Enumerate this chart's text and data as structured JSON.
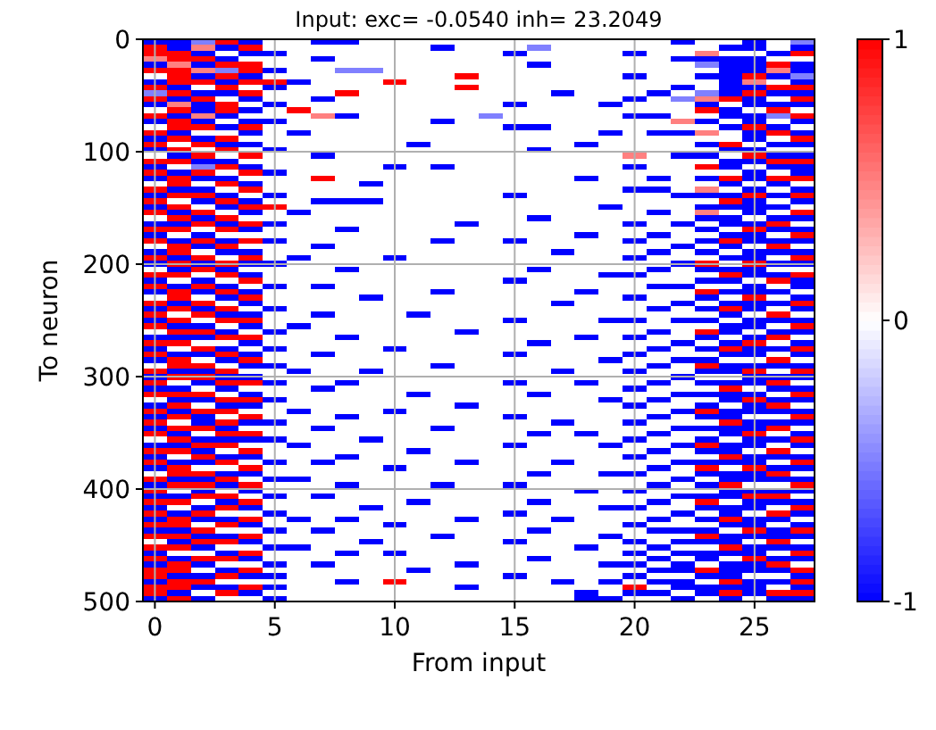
{
  "chart_data": {
    "type": "heatmap",
    "title": "Input: exc= -0.0540 inh= 23.2049",
    "xlabel": "From input",
    "ylabel": "To neuron",
    "x": [
      0,
      1,
      2,
      3,
      4,
      5,
      6,
      7,
      8,
      9,
      10,
      11,
      12,
      13,
      14,
      15,
      16,
      17,
      18,
      19,
      20,
      21,
      22,
      23,
      24,
      25,
      26,
      27
    ],
    "xlim": [
      -0.5,
      27.5
    ],
    "xticks": [
      0,
      5,
      10,
      15,
      20,
      25
    ],
    "ylim": [
      500,
      0
    ],
    "yticks": [
      0,
      100,
      200,
      300,
      400,
      500
    ],
    "grid": true,
    "clim": [
      -1,
      1
    ],
    "cticks": [
      -1,
      0,
      1
    ],
    "cells": [
      [
        -1,
        -1,
        -0.5,
        1,
        -1,
        0,
        0,
        -1,
        -1,
        0,
        0,
        0,
        0,
        0,
        0,
        0,
        0,
        0,
        0,
        0,
        0,
        0,
        -1,
        0,
        0,
        -1,
        0,
        -0.5
      ],
      [
        1,
        -1,
        0.5,
        -1,
        1,
        0,
        0,
        0,
        0,
        0,
        0,
        0,
        -1,
        0,
        0,
        0,
        -0.5,
        0,
        0,
        0,
        0,
        0,
        0,
        0,
        -1,
        -1,
        0,
        -1
      ],
      [
        1,
        1,
        -1,
        0,
        -1,
        -1,
        0,
        0,
        0,
        0,
        0,
        0,
        0,
        0,
        0,
        -1,
        0,
        0,
        0,
        0,
        -1,
        0,
        0,
        0.5,
        0,
        0,
        -1,
        1
      ],
      [
        0.5,
        1,
        1,
        -1,
        0,
        0,
        0,
        -1,
        0,
        0,
        0,
        0,
        0,
        0,
        0,
        0,
        0,
        0,
        0,
        0,
        0,
        0,
        -1,
        -1,
        -1,
        -1,
        0,
        0
      ],
      [
        -1,
        0.5,
        -1,
        1,
        1,
        0,
        0,
        0,
        0,
        0,
        0,
        0,
        0,
        0,
        0,
        0,
        -1,
        0,
        0,
        0,
        0,
        0,
        0,
        -0.5,
        -1,
        -1,
        1,
        -1
      ],
      [
        1,
        1,
        0.5,
        -0.5,
        1,
        -1,
        0,
        0,
        -0.5,
        -0.5,
        0,
        0,
        0,
        0,
        0,
        0,
        0,
        0,
        0,
        0,
        0,
        0,
        0,
        0,
        -1,
        -1,
        0.5,
        -1
      ],
      [
        0,
        1,
        -1,
        1,
        -1,
        0,
        0,
        0,
        0,
        0,
        0,
        0,
        0,
        1,
        0,
        0,
        0,
        0,
        0,
        0,
        -1,
        0,
        0,
        -1,
        -1,
        1,
        -1,
        -0.5
      ],
      [
        -1,
        1,
        1,
        -1,
        1,
        1,
        -1,
        0,
        0,
        0,
        1,
        0,
        0,
        0,
        0,
        0,
        0,
        0,
        0,
        0,
        0,
        0,
        0,
        0,
        -1,
        0.5,
        0,
        -1
      ],
      [
        1,
        -1,
        0,
        1,
        0,
        -1,
        0,
        0,
        0,
        0,
        0,
        0,
        0,
        1,
        0,
        0,
        0,
        0,
        0,
        0,
        0,
        0,
        -1,
        0,
        -1,
        -1,
        1,
        1
      ],
      [
        -0.5,
        1,
        -1,
        -1,
        1,
        0,
        0,
        0,
        1,
        0,
        0,
        0,
        0,
        0,
        0,
        0,
        0,
        -1,
        0,
        0,
        0,
        -1,
        0,
        -0.5,
        -1,
        1,
        -1,
        -1
      ],
      [
        1,
        -1,
        1,
        0,
        -1,
        0,
        0,
        -1,
        0,
        0,
        0,
        0,
        0,
        0,
        0,
        0,
        0,
        0,
        0,
        0,
        -1,
        0,
        -0.5,
        0.5,
        1,
        -1,
        0,
        1
      ],
      [
        -1,
        0.5,
        -1,
        1,
        0,
        -1,
        0,
        0,
        0,
        0,
        0,
        0,
        0,
        0,
        0,
        -1,
        0,
        0,
        0,
        -1,
        0,
        0,
        0,
        -1,
        0,
        -1,
        -1,
        -1
      ],
      [
        0,
        1,
        -1,
        1,
        -1,
        0,
        1,
        0,
        0,
        0,
        0,
        0,
        0,
        0,
        0,
        0,
        0,
        0,
        0,
        0,
        0,
        0,
        0,
        1,
        -1,
        0,
        1,
        0
      ],
      [
        1,
        -1,
        0.5,
        -1,
        0,
        0,
        0,
        0.5,
        -1,
        0,
        0,
        0,
        0,
        0,
        -0.5,
        0,
        0,
        0,
        0,
        0,
        -1,
        -1,
        0,
        0,
        -1,
        -1,
        -0.5,
        1
      ],
      [
        -1,
        1,
        -1,
        0,
        -1,
        -1,
        0,
        0,
        0,
        0,
        0,
        0,
        -1,
        0,
        0,
        0,
        0,
        0,
        0,
        0,
        0,
        0,
        0.5,
        -1,
        0,
        -1,
        0,
        -1
      ],
      [
        0,
        1,
        1,
        -1,
        1,
        0,
        0,
        0,
        0,
        0,
        0,
        0,
        0,
        0,
        0,
        -1,
        -1,
        0,
        0,
        0,
        0,
        0,
        0,
        0,
        -1,
        1,
        -1,
        0
      ],
      [
        1,
        -1,
        0,
        0,
        -1,
        0,
        -1,
        0,
        0,
        0,
        0,
        0,
        0,
        0,
        0,
        0,
        0,
        0,
        0,
        -1,
        0,
        -1,
        -1,
        0.5,
        0,
        -1,
        1,
        -1
      ],
      [
        -1,
        1,
        -1,
        1,
        0,
        0,
        0,
        0,
        0,
        0,
        0,
        0,
        0,
        0,
        0,
        0,
        0,
        0,
        0,
        0,
        0,
        0,
        0,
        0,
        0,
        -1,
        0,
        1
      ],
      [
        1,
        0,
        1,
        -1,
        -1,
        0,
        0,
        0,
        0,
        0,
        0,
        -1,
        0,
        0,
        0,
        0,
        0,
        0,
        -1,
        0,
        0,
        0,
        0,
        -1,
        1,
        0,
        -1,
        -1
      ],
      [
        -1,
        1,
        0,
        1,
        0,
        -1,
        0,
        0,
        0,
        0,
        0,
        0,
        0,
        0,
        0,
        0,
        -1,
        0,
        0,
        0,
        0,
        0,
        0,
        0,
        -1,
        -1,
        0,
        0
      ],
      [
        0,
        -1,
        1,
        0,
        1,
        0,
        0,
        -1,
        0,
        0,
        0,
        0,
        0,
        0,
        0,
        0,
        0,
        0,
        0,
        0,
        0.5,
        0,
        -1,
        -1,
        0,
        1,
        -1,
        -1
      ],
      [
        1,
        1,
        -1,
        -1,
        0,
        0,
        0,
        0,
        0,
        0,
        0,
        0,
        0,
        0,
        0,
        0,
        0,
        0,
        0,
        0,
        0,
        0,
        0,
        0,
        -1,
        -1,
        1,
        1
      ],
      [
        -1,
        0,
        -0.5,
        1,
        -1,
        0,
        0,
        0,
        0,
        0,
        -1,
        0,
        -1,
        0,
        0,
        0,
        0,
        0,
        0,
        0,
        -1,
        0,
        0,
        1,
        -1,
        0,
        -1,
        -1
      ],
      [
        1,
        -1,
        1,
        0,
        1,
        -1,
        0,
        0,
        0,
        0,
        0,
        0,
        0,
        0,
        0,
        0,
        0,
        0,
        0,
        0,
        0,
        0,
        0,
        0,
        0,
        -1,
        0,
        -1
      ],
      [
        -1,
        1,
        -1,
        -1,
        0,
        0,
        0,
        1,
        0,
        0,
        0,
        0,
        0,
        0,
        0,
        0,
        0,
        0,
        -1,
        0,
        0,
        -1,
        0,
        -1,
        1,
        -1,
        1,
        1
      ],
      [
        0,
        1,
        0,
        1,
        -1,
        0,
        0,
        0,
        0,
        -1,
        0,
        0,
        0,
        0,
        0,
        0,
        0,
        0,
        0,
        0,
        0,
        0,
        0,
        0,
        -1,
        0,
        -1,
        0
      ],
      [
        1,
        -1,
        -1,
        0,
        1,
        0,
        0,
        0,
        0,
        0,
        0,
        0,
        0,
        0,
        0,
        0,
        0,
        0,
        0,
        0,
        -1,
        -1,
        0,
        0.5,
        0,
        -1,
        0,
        -1
      ],
      [
        -1,
        1,
        1,
        -1,
        0,
        -1,
        0,
        0,
        0,
        0,
        0,
        0,
        0,
        0,
        0,
        -1,
        0,
        0,
        0,
        0,
        0,
        0,
        -1,
        -1,
        -1,
        1,
        -1,
        1
      ],
      [
        1,
        0,
        -1,
        1,
        -1,
        0,
        0,
        -1,
        -1,
        -1,
        0,
        0,
        0,
        0,
        0,
        0,
        0,
        0,
        0,
        0,
        0,
        0,
        0,
        0,
        1,
        -1,
        0,
        -1
      ],
      [
        -1,
        1,
        0,
        -1,
        1,
        1,
        0,
        0,
        0,
        0,
        0,
        0,
        0,
        0,
        0,
        0,
        0,
        0,
        0,
        -1,
        0,
        0,
        0,
        -1,
        -1,
        -1,
        -1,
        0
      ],
      [
        1,
        -1,
        1,
        0,
        -1,
        0,
        -1,
        0,
        0,
        0,
        0,
        0,
        0,
        0,
        0,
        0,
        0,
        0,
        0,
        0,
        0,
        -1,
        0,
        0.5,
        0,
        -1,
        0,
        1
      ],
      [
        0,
        1,
        -1,
        1,
        0,
        0,
        0,
        0,
        0,
        0,
        0,
        0,
        0,
        0,
        0,
        0,
        -1,
        0,
        0,
        0,
        0,
        0,
        0,
        -1,
        -1,
        0,
        -1,
        -1
      ],
      [
        -1,
        -1,
        1,
        -1,
        1,
        -1,
        0,
        0,
        0,
        0,
        0,
        0,
        0,
        -1,
        0,
        0,
        0,
        0,
        0,
        0,
        -1,
        0,
        -1,
        0,
        -1,
        -1,
        1,
        0
      ],
      [
        1,
        1,
        0,
        1,
        -1,
        0,
        0,
        0,
        -1,
        0,
        0,
        0,
        0,
        0,
        0,
        0,
        0,
        0,
        0,
        0,
        0,
        0,
        0,
        -1,
        0,
        1,
        -1,
        -1
      ],
      [
        -1,
        0,
        -1,
        0,
        0,
        0,
        0,
        0,
        0,
        0,
        0,
        0,
        0,
        0,
        0,
        0,
        0,
        0,
        -1,
        0,
        0,
        -1,
        0,
        0,
        -1,
        -1,
        0,
        1
      ],
      [
        1,
        -1,
        1,
        -1,
        1,
        -1,
        0,
        0,
        0,
        0,
        0,
        0,
        -1,
        0,
        0,
        -1,
        0,
        0,
        0,
        0,
        -1,
        0,
        0,
        -1,
        1,
        -1,
        -1,
        -1
      ],
      [
        0,
        1,
        -1,
        1,
        0,
        0,
        0,
        -1,
        0,
        0,
        0,
        0,
        0,
        0,
        0,
        0,
        0,
        0,
        0,
        0,
        0,
        0,
        -1,
        0,
        -1,
        0,
        1,
        0
      ],
      [
        -1,
        1,
        0,
        -1,
        -1,
        0,
        0,
        0,
        0,
        0,
        0,
        0,
        0,
        0,
        0,
        0,
        0,
        -1,
        0,
        0,
        0,
        -1,
        0,
        -1,
        0,
        -1,
        -1,
        -1
      ],
      [
        1,
        -1,
        1,
        0,
        1,
        0,
        -1,
        0,
        0,
        0,
        -1,
        0,
        0,
        0,
        0,
        0,
        0,
        0,
        0,
        0,
        -1,
        0,
        0,
        0,
        -1,
        -1,
        0,
        1
      ],
      [
        -1,
        1,
        -1,
        1,
        -1,
        -1,
        0,
        0,
        0,
        0,
        0,
        0,
        0,
        0,
        0,
        0,
        0,
        0,
        0,
        0,
        0,
        0,
        -1,
        1,
        0,
        1,
        -1,
        -1
      ],
      [
        0,
        -1,
        1,
        -1,
        0,
        0,
        0,
        0,
        -1,
        0,
        0,
        0,
        0,
        0,
        0,
        0,
        -1,
        0,
        0,
        0,
        0,
        -1,
        0,
        -1,
        -1,
        -1,
        0,
        0
      ],
      [
        1,
        1,
        0,
        1,
        -1,
        0,
        0,
        0,
        0,
        0,
        0,
        0,
        0,
        0,
        0,
        0,
        0,
        0,
        0,
        -1,
        -1,
        0,
        0,
        0,
        1,
        -1,
        -1,
        1
      ],
      [
        -1,
        0,
        -1,
        0,
        1,
        0,
        0,
        0,
        0,
        0,
        0,
        0,
        0,
        0,
        0,
        -1,
        0,
        0,
        0,
        0,
        0,
        0,
        0,
        -1,
        -1,
        0,
        1,
        -1
      ],
      [
        1,
        -1,
        1,
        -1,
        0,
        -1,
        0,
        -1,
        0,
        0,
        0,
        0,
        0,
        0,
        0,
        0,
        0,
        0,
        0,
        0,
        0,
        -1,
        -1,
        0,
        0,
        -1,
        0,
        -1
      ],
      [
        -1,
        1,
        -1,
        1,
        -1,
        0,
        0,
        0,
        0,
        0,
        0,
        0,
        -1,
        0,
        0,
        0,
        0,
        0,
        -1,
        0,
        0,
        0,
        0,
        1,
        -1,
        -1,
        -1,
        0
      ],
      [
        0,
        1,
        0,
        -1,
        1,
        0,
        0,
        0,
        0,
        -1,
        0,
        0,
        0,
        0,
        0,
        0,
        0,
        0,
        0,
        0,
        -1,
        0,
        0,
        -1,
        0,
        1,
        0,
        -1
      ],
      [
        1,
        -1,
        1,
        0,
        -1,
        0,
        0,
        0,
        0,
        0,
        0,
        0,
        0,
        0,
        0,
        0,
        0,
        -1,
        0,
        0,
        0,
        0,
        -1,
        0,
        -1,
        -1,
        -1,
        1
      ],
      [
        -1,
        1,
        -1,
        1,
        0,
        -1,
        0,
        0,
        0,
        0,
        0,
        0,
        0,
        0,
        0,
        0,
        0,
        0,
        0,
        0,
        0,
        -1,
        0,
        -1,
        1,
        -1,
        0,
        -1
      ],
      [
        1,
        0,
        1,
        -1,
        -1,
        0,
        0,
        -1,
        0,
        0,
        0,
        -1,
        0,
        0,
        0,
        0,
        0,
        0,
        0,
        0,
        0,
        0,
        0,
        0,
        -1,
        0,
        1,
        0
      ],
      [
        -1,
        1,
        0,
        1,
        1,
        0,
        0,
        0,
        0,
        0,
        0,
        0,
        0,
        0,
        0,
        -1,
        0,
        0,
        0,
        -1,
        -1,
        0,
        -1,
        -1,
        0,
        -1,
        -1,
        -1
      ],
      [
        1,
        -1,
        -1,
        0,
        -1,
        0,
        -1,
        0,
        0,
        0,
        0,
        0,
        0,
        0,
        0,
        0,
        0,
        0,
        0,
        0,
        0,
        0,
        0,
        0,
        -1,
        -1,
        0,
        1
      ],
      [
        0,
        1,
        1,
        -1,
        0,
        -1,
        0,
        0,
        0,
        0,
        0,
        0,
        0,
        -1,
        0,
        0,
        0,
        0,
        0,
        0,
        0,
        -1,
        0,
        1,
        -1,
        0,
        -1,
        -1
      ],
      [
        -1,
        -1,
        -1,
        1,
        1,
        0,
        0,
        0,
        -1,
        0,
        0,
        0,
        0,
        0,
        0,
        0,
        0,
        0,
        -1,
        0,
        -1,
        0,
        0,
        -1,
        0,
        -1,
        1,
        0
      ],
      [
        1,
        1,
        0,
        0,
        -1,
        0,
        0,
        0,
        0,
        0,
        0,
        0,
        0,
        0,
        0,
        0,
        -1,
        0,
        0,
        0,
        0,
        0,
        -1,
        0,
        -1,
        1,
        0,
        -1
      ],
      [
        -1,
        0,
        1,
        -1,
        0,
        -1,
        0,
        0,
        0,
        0,
        -1,
        0,
        0,
        0,
        0,
        0,
        0,
        0,
        0,
        0,
        0,
        -1,
        0,
        -1,
        1,
        -1,
        -1,
        1
      ],
      [
        1,
        -1,
        -1,
        1,
        -1,
        0,
        0,
        -1,
        0,
        0,
        0,
        0,
        0,
        0,
        0,
        -1,
        0,
        0,
        0,
        0,
        -1,
        0,
        0,
        0,
        -1,
        -1,
        0,
        -1
      ],
      [
        -1,
        1,
        0,
        -1,
        1,
        0,
        0,
        0,
        0,
        0,
        0,
        0,
        0,
        0,
        0,
        0,
        0,
        0,
        0,
        -1,
        0,
        0,
        -1,
        -1,
        0,
        0,
        1,
        0
      ],
      [
        0,
        1,
        1,
        0,
        -1,
        -1,
        0,
        0,
        0,
        0,
        0,
        0,
        -1,
        0,
        0,
        0,
        0,
        0,
        0,
        0,
        0,
        -1,
        0,
        1,
        -1,
        -1,
        -1,
        -1
      ],
      [
        1,
        -1,
        -1,
        1,
        0,
        0,
        -1,
        0,
        0,
        -1,
        0,
        0,
        0,
        0,
        0,
        0,
        0,
        -1,
        0,
        0,
        -1,
        0,
        0,
        -1,
        -1,
        1,
        0,
        1
      ],
      [
        -1,
        1,
        1,
        -1,
        -1,
        0,
        0,
        0,
        0,
        0,
        0,
        0,
        0,
        0,
        0,
        0,
        0,
        0,
        0,
        0,
        0,
        0,
        -1,
        0,
        0,
        -1,
        -1,
        -1
      ],
      [
        1,
        0,
        -1,
        1,
        1,
        -1,
        0,
        0,
        -1,
        0,
        0,
        0,
        0,
        0,
        0,
        -1,
        0,
        0,
        -1,
        0,
        0,
        -1,
        0,
        -1,
        -1,
        -1,
        1,
        0
      ],
      [
        -1,
        -1,
        0,
        -1,
        0,
        0,
        0,
        -1,
        0,
        0,
        0,
        0,
        0,
        0,
        0,
        0,
        0,
        0,
        0,
        0,
        -1,
        0,
        0,
        0,
        1,
        0,
        -1,
        -1
      ],
      [
        1,
        1,
        1,
        0,
        -1,
        0,
        0,
        0,
        0,
        0,
        0,
        -1,
        0,
        0,
        0,
        0,
        -1,
        0,
        0,
        0,
        0,
        0,
        -1,
        -1,
        -1,
        -1,
        0,
        1
      ],
      [
        0,
        -1,
        -1,
        1,
        1,
        -1,
        0,
        0,
        0,
        0,
        0,
        0,
        0,
        0,
        0,
        0,
        0,
        0,
        0,
        -1,
        0,
        -1,
        0,
        0,
        -1,
        1,
        -1,
        -1
      ],
      [
        -1,
        1,
        0,
        -1,
        -1,
        0,
        0,
        0,
        0,
        0,
        0,
        0,
        0,
        -1,
        0,
        0,
        0,
        0,
        0,
        0,
        -1,
        0,
        0,
        -1,
        0,
        -1,
        1,
        0
      ],
      [
        1,
        -1,
        1,
        1,
        0,
        0,
        -1,
        0,
        0,
        0,
        -1,
        0,
        0,
        0,
        0,
        0,
        0,
        0,
        0,
        0,
        0,
        0,
        -1,
        1,
        -1,
        -1,
        -1,
        -1
      ],
      [
        -1,
        1,
        -1,
        0,
        1,
        0,
        0,
        0,
        -1,
        0,
        0,
        0,
        0,
        0,
        0,
        -1,
        0,
        0,
        0,
        0,
        0,
        -1,
        0,
        -1,
        -1,
        0,
        0,
        1
      ],
      [
        1,
        0,
        -1,
        1,
        -1,
        -1,
        0,
        0,
        0,
        0,
        0,
        0,
        0,
        0,
        0,
        0,
        0,
        -1,
        0,
        0,
        -1,
        0,
        0,
        0,
        1,
        -1,
        -1,
        -1
      ],
      [
        -1,
        1,
        1,
        -1,
        0,
        0,
        0,
        -1,
        0,
        0,
        0,
        0,
        -1,
        0,
        0,
        0,
        0,
        0,
        0,
        0,
        0,
        0,
        -1,
        -1,
        -1,
        -1,
        1,
        0
      ],
      [
        1,
        -1,
        0,
        1,
        1,
        0,
        0,
        0,
        0,
        0,
        0,
        0,
        0,
        0,
        0,
        0,
        -1,
        0,
        -1,
        0,
        0,
        -1,
        0,
        0,
        -1,
        1,
        0,
        -1
      ],
      [
        0,
        1,
        -1,
        -1,
        -1,
        -1,
        0,
        0,
        0,
        -1,
        0,
        0,
        0,
        0,
        0,
        0,
        0,
        0,
        0,
        0,
        -1,
        0,
        0,
        -1,
        0,
        -1,
        -1,
        1
      ],
      [
        -1,
        -1,
        1,
        1,
        0,
        0,
        -1,
        0,
        0,
        0,
        0,
        0,
        0,
        0,
        0,
        -1,
        0,
        0,
        0,
        -1,
        0,
        0,
        -1,
        1,
        -1,
        -1,
        0,
        -1
      ],
      [
        1,
        1,
        -1,
        0,
        1,
        0,
        0,
        0,
        0,
        0,
        0,
        -1,
        0,
        0,
        0,
        0,
        0,
        0,
        0,
        0,
        0,
        -1,
        0,
        -1,
        -1,
        0,
        1,
        0
      ],
      [
        -1,
        0,
        1,
        -1,
        -1,
        0,
        0,
        0,
        -1,
        0,
        0,
        0,
        0,
        0,
        0,
        0,
        0,
        0,
        0,
        0,
        -1,
        0,
        0,
        0,
        1,
        -1,
        -1,
        -1
      ],
      [
        1,
        -1,
        -1,
        1,
        0,
        -1,
        0,
        -1,
        0,
        0,
        0,
        0,
        0,
        -1,
        0,
        0,
        0,
        -1,
        0,
        0,
        0,
        0,
        -1,
        -1,
        -1,
        -1,
        0,
        1
      ],
      [
        -1,
        1,
        0,
        0,
        1,
        0,
        0,
        0,
        0,
        0,
        -1,
        0,
        0,
        0,
        0,
        0,
        0,
        0,
        0,
        0,
        0,
        -1,
        0,
        1,
        0,
        1,
        -1,
        -1
      ],
      [
        0,
        1,
        1,
        -1,
        -1,
        0,
        0,
        0,
        0,
        0,
        0,
        0,
        0,
        0,
        0,
        0,
        -1,
        0,
        0,
        -1,
        -1,
        0,
        0,
        -1,
        -1,
        -1,
        1,
        0
      ],
      [
        1,
        -1,
        -1,
        1,
        0,
        -1,
        -1,
        0,
        0,
        0,
        0,
        0,
        0,
        0,
        0,
        0,
        0,
        0,
        0,
        0,
        0,
        0,
        -1,
        0,
        -1,
        -1,
        -1,
        -1
      ],
      [
        -1,
        1,
        1,
        -1,
        1,
        0,
        0,
        0,
        -1,
        0,
        0,
        0,
        -1,
        0,
        0,
        -1,
        0,
        0,
        0,
        0,
        0,
        -1,
        0,
        -1,
        1,
        0,
        0,
        1
      ],
      [
        1,
        0,
        -1,
        0,
        -1,
        0,
        0,
        0,
        0,
        0,
        0,
        0,
        0,
        0,
        0,
        0,
        0,
        0,
        -1,
        0,
        -1,
        0,
        0,
        0,
        -1,
        -1,
        -1,
        -1
      ],
      [
        -1,
        -1,
        1,
        1,
        0,
        -1,
        0,
        -1,
        0,
        0,
        0,
        0,
        0,
        0,
        0,
        0,
        0,
        0,
        0,
        0,
        0,
        0,
        -1,
        -1,
        -1,
        1,
        1,
        0
      ],
      [
        1,
        1,
        0,
        -1,
        1,
        0,
        0,
        0,
        0,
        0,
        0,
        -1,
        0,
        0,
        0,
        0,
        -1,
        0,
        0,
        0,
        0,
        -1,
        0,
        1,
        0,
        -1,
        -1,
        -1
      ],
      [
        -1,
        0,
        -1,
        1,
        -1,
        0,
        0,
        0,
        0,
        -1,
        0,
        0,
        0,
        0,
        0,
        0,
        0,
        0,
        0,
        -1,
        -1,
        0,
        0,
        -1,
        -1,
        -1,
        0,
        1
      ],
      [
        1,
        -1,
        1,
        0,
        0,
        -1,
        0,
        0,
        0,
        0,
        0,
        0,
        0,
        0,
        0,
        -1,
        0,
        0,
        0,
        0,
        0,
        0,
        -1,
        0,
        -1,
        0,
        1,
        -1
      ],
      [
        -1,
        1,
        -1,
        -1,
        1,
        0,
        -1,
        0,
        -1,
        0,
        0,
        0,
        0,
        -1,
        0,
        0,
        0,
        -1,
        0,
        0,
        0,
        -1,
        0,
        -1,
        1,
        -1,
        -1,
        0
      ],
      [
        1,
        1,
        0,
        1,
        -1,
        0,
        0,
        0,
        0,
        0,
        -1,
        0,
        0,
        0,
        0,
        0,
        0,
        0,
        0,
        0,
        -1,
        0,
        0,
        0,
        -1,
        -1,
        0,
        -1
      ],
      [
        -1,
        -1,
        1,
        0,
        0,
        -1,
        0,
        -1,
        0,
        0,
        0,
        0,
        0,
        0,
        0,
        0,
        -1,
        0,
        0,
        0,
        0,
        -1,
        -1,
        -1,
        0,
        1,
        -1,
        1
      ],
      [
        1,
        1,
        -1,
        -1,
        1,
        0,
        0,
        0,
        0,
        0,
        0,
        0,
        -1,
        0,
        0,
        0,
        0,
        0,
        0,
        -1,
        0,
        0,
        0,
        1,
        -1,
        -1,
        -1,
        -1
      ],
      [
        0,
        -1,
        1,
        1,
        -1,
        0,
        0,
        0,
        0,
        -1,
        0,
        0,
        0,
        0,
        0,
        -1,
        0,
        0,
        0,
        0,
        -1,
        0,
        -1,
        -1,
        -1,
        0,
        1,
        0
      ],
      [
        1,
        1,
        -1,
        0,
        0,
        -1,
        -1,
        0,
        0,
        0,
        0,
        0,
        0,
        0,
        0,
        0,
        0,
        0,
        -1,
        0,
        0,
        -1,
        0,
        0,
        1,
        -1,
        -1,
        -1
      ],
      [
        -1,
        0,
        0,
        -1,
        1,
        0,
        0,
        0,
        -1,
        0,
        -1,
        0,
        0,
        0,
        0,
        0,
        0,
        0,
        0,
        0,
        -1,
        0,
        -1,
        -1,
        -1,
        -1,
        0,
        1
      ],
      [
        1,
        -1,
        1,
        1,
        -1,
        0,
        0,
        0,
        0,
        0,
        0,
        0,
        0,
        0,
        0,
        0,
        -1,
        0,
        0,
        0,
        0,
        -1,
        0,
        -1,
        0,
        1,
        -1,
        -1
      ],
      [
        -1,
        1,
        -1,
        0,
        0,
        -1,
        0,
        -1,
        0,
        0,
        0,
        0,
        0,
        -1,
        0,
        0,
        0,
        0,
        0,
        -1,
        -1,
        0,
        -1,
        0,
        -1,
        -1,
        1,
        0
      ],
      [
        1,
        1,
        0,
        -1,
        1,
        0,
        0,
        0,
        0,
        0,
        0,
        -1,
        0,
        0,
        0,
        0,
        0,
        0,
        0,
        0,
        0,
        -1,
        -1,
        1,
        -1,
        -1,
        -1,
        1
      ],
      [
        1,
        -1,
        -1,
        1,
        -1,
        -1,
        0,
        0,
        0,
        0,
        0,
        0,
        0,
        0,
        0,
        -1,
        0,
        0,
        0,
        0,
        -1,
        0,
        0,
        -1,
        -1,
        0,
        0,
        -1
      ],
      [
        -1,
        1,
        1,
        0,
        0,
        0,
        0,
        0,
        -1,
        0,
        1,
        0,
        0,
        0,
        0,
        0,
        0,
        -1,
        0,
        -1,
        0,
        -1,
        -1,
        0,
        1,
        -1,
        -1,
        1
      ],
      [
        1,
        1,
        -1,
        -1,
        1,
        -1,
        0,
        0,
        0,
        0,
        0,
        0,
        0,
        -1,
        0,
        0,
        0,
        0,
        0,
        0,
        1,
        0,
        -1,
        -1,
        -1,
        -1,
        0,
        -1
      ],
      [
        1,
        -1,
        0,
        1,
        -1,
        0,
        0,
        0,
        0,
        0,
        0,
        0,
        0,
        0,
        0,
        0,
        0,
        0,
        -1,
        0,
        -1,
        -1,
        0,
        -1,
        1,
        -1,
        1,
        1
      ],
      [
        -1,
        1,
        -1,
        0,
        0,
        -1,
        0,
        0,
        0,
        0,
        0,
        0,
        0,
        0,
        0,
        0,
        0,
        0,
        -1,
        -1,
        0,
        0,
        -1,
        0,
        -1,
        0,
        -1,
        -1
      ]
    ]
  }
}
